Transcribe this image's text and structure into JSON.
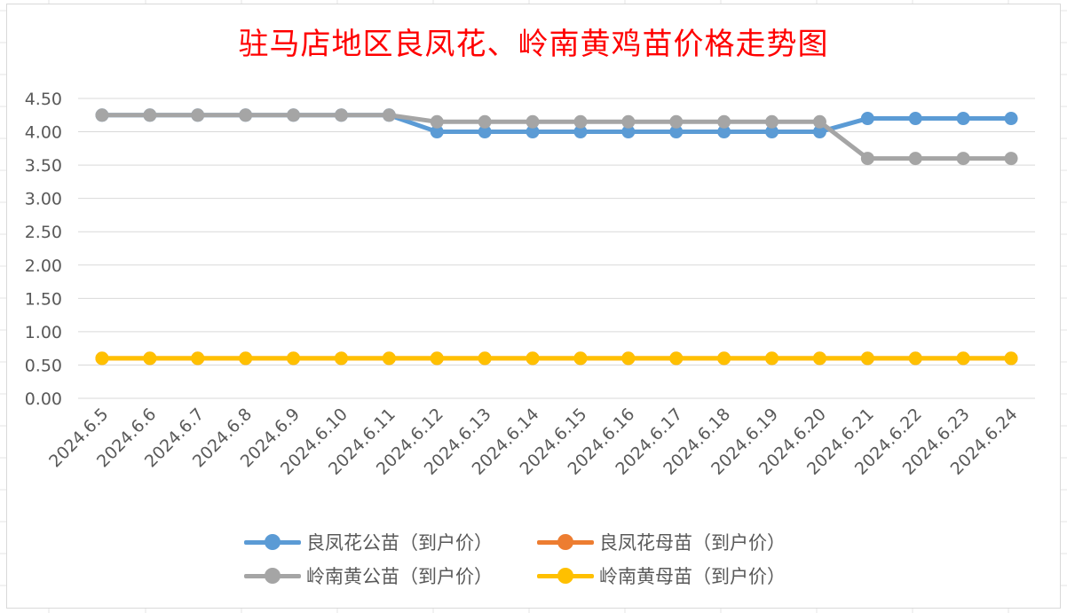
{
  "chart_data": {
    "type": "line",
    "title": "驻马店地区良凤花、岭南黄鸡苗价格走势图",
    "x": [
      "2024.6.5",
      "2024.6.6",
      "2024.6.7",
      "2024.6.8",
      "2024.6.9",
      "2024.6.10",
      "2024.6.11",
      "2024.6.12",
      "2024.6.13",
      "2024.6.14",
      "2024.6.15",
      "2024.6.16",
      "2024.6.17",
      "2024.6.18",
      "2024.6.19",
      "2024.6.20",
      "2024.6.21",
      "2024.6.22",
      "2024.6.23",
      "2024.6.24"
    ],
    "ylim": [
      0,
      4.5
    ],
    "yticks": [
      "0.00",
      "0.50",
      "1.00",
      "1.50",
      "2.00",
      "2.50",
      "3.00",
      "3.50",
      "4.00",
      "4.50"
    ],
    "grid": true,
    "legend_position": "bottom",
    "series": [
      {
        "name": "良凤花公苗（到户价）",
        "color": "#5b9bd5",
        "values": [
          4.25,
          4.25,
          4.25,
          4.25,
          4.25,
          4.25,
          4.25,
          4.0,
          4.0,
          4.0,
          4.0,
          4.0,
          4.0,
          4.0,
          4.0,
          4.0,
          4.2,
          4.2,
          4.2,
          4.2
        ]
      },
      {
        "name": "良凤花母苗（到户价）",
        "color": "#ed7d31",
        "values": [
          0.6,
          0.6,
          0.6,
          0.6,
          0.6,
          0.6,
          0.6,
          0.6,
          0.6,
          0.6,
          0.6,
          0.6,
          0.6,
          0.6,
          0.6,
          0.6,
          0.6,
          0.6,
          0.6,
          0.6
        ]
      },
      {
        "name": "岭南黄公苗（到户价）",
        "color": "#a5a5a5",
        "values": [
          4.25,
          4.25,
          4.25,
          4.25,
          4.25,
          4.25,
          4.25,
          4.15,
          4.15,
          4.15,
          4.15,
          4.15,
          4.15,
          4.15,
          4.15,
          4.15,
          3.6,
          3.6,
          3.6,
          3.6
        ]
      },
      {
        "name": "岭南黄母苗（到户价）",
        "color": "#ffc000",
        "values": [
          0.6,
          0.6,
          0.6,
          0.6,
          0.6,
          0.6,
          0.6,
          0.6,
          0.6,
          0.6,
          0.6,
          0.6,
          0.6,
          0.6,
          0.6,
          0.6,
          0.6,
          0.6,
          0.6,
          0.6
        ]
      }
    ]
  }
}
